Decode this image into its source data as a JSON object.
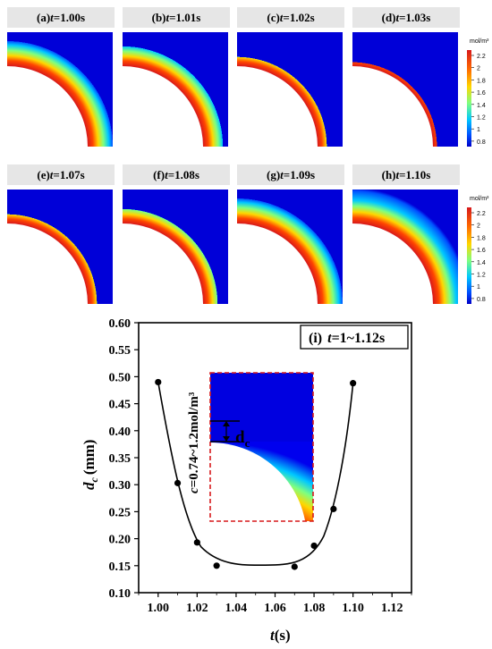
{
  "panels": [
    {
      "letter": "(a)",
      "time": "=1.00s"
    },
    {
      "letter": "(b)",
      "time": "=1.01s"
    },
    {
      "letter": "(c)",
      "time": "=1.02s"
    },
    {
      "letter": "(d)",
      "time": "=1.03s"
    },
    {
      "letter": "(e)",
      "time": "=1.07s"
    },
    {
      "letter": "(f)",
      "time": "=1.08s"
    },
    {
      "letter": "(g)",
      "time": "=1.09s"
    },
    {
      "letter": "(h)",
      "time": "=1.10s"
    }
  ],
  "time_symbol": "t",
  "colorbar": {
    "unit": "mol/m³",
    "ticks": [
      "2.2",
      "2",
      "1.8",
      "1.6",
      "1.4",
      "1.2",
      "1",
      "0.8"
    ],
    "colors": [
      "#d7191c",
      "#ff6a00",
      "#ffd700",
      "#7fff7f",
      "#00c8ff",
      "#0050ff",
      "#0000c8"
    ]
  },
  "chart_data": {
    "type": "scatter",
    "panel_label": "(i)",
    "title_symbol": "t",
    "title": "=1~1.12s",
    "xlabel_symbol": "t",
    "xlabel": "(s)",
    "ylabel_symbol": "d",
    "ylabel_subscript": "c",
    "ylabel": "(mm)",
    "xlim": [
      0.99,
      1.13
    ],
    "ylim": [
      0.1,
      0.6
    ],
    "xticks": [
      "1.00",
      "1.02",
      "1.04",
      "1.06",
      "1.08",
      "1.10",
      "1.12"
    ],
    "yticks": [
      "0.10",
      "0.15",
      "0.20",
      "0.25",
      "0.30",
      "0.35",
      "0.40",
      "0.45",
      "0.50",
      "0.55",
      "0.60"
    ],
    "x": [
      1.0,
      1.01,
      1.02,
      1.03,
      1.07,
      1.08,
      1.09,
      1.1
    ],
    "y": [
      0.49,
      0.303,
      0.193,
      0.15,
      0.148,
      0.187,
      0.255,
      0.488
    ],
    "fit_curve": true,
    "inset": {
      "label_symbol": "c",
      "label": "=0.74~1.2mol/m³",
      "marker_symbol": "d",
      "marker_subscript": "c"
    }
  }
}
